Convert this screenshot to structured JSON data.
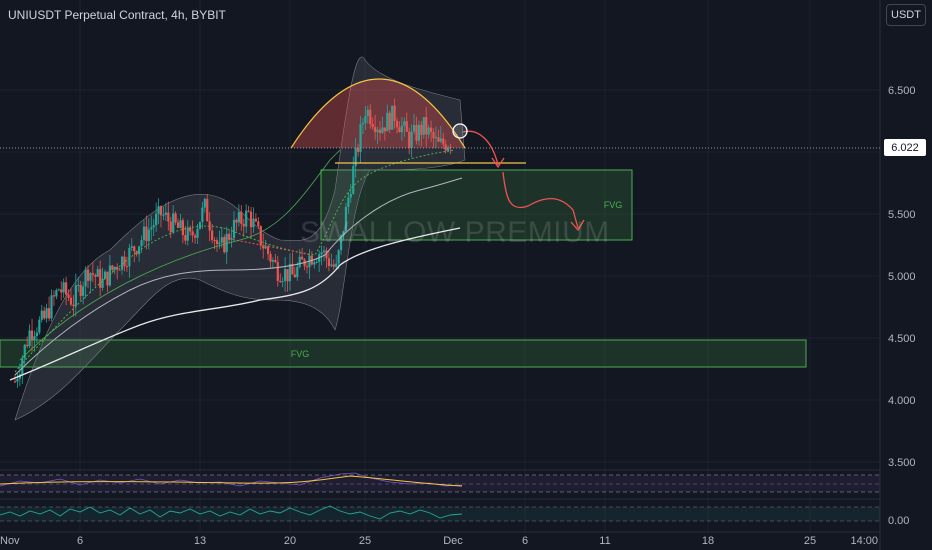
{
  "header": {
    "title": "UNIUSDT Perpetual Contract, 4h, BYBIT",
    "currency": "USDT"
  },
  "watermark": "SWALLOW PREMIUM",
  "current_price": "6.022",
  "chart_data": {
    "type": "candlestick",
    "title": "UNIUSDT Perpetual Contract, 4h, BYBIT",
    "y_ticks": [
      "6.500",
      "6.000",
      "5.500",
      "5.000",
      "4.500",
      "4.000",
      "3.500"
    ],
    "y_tick_values": [
      6.5,
      6.0,
      5.5,
      5.0,
      4.5,
      4.0,
      3.5
    ],
    "x_ticks": [
      "Nov",
      "6",
      "13",
      "20",
      "25",
      "Dec",
      "6",
      "11",
      "18",
      "25",
      "14:00"
    ],
    "x_tick_days": [
      0,
      6,
      13,
      20,
      25,
      30,
      36,
      41,
      48,
      55,
      61
    ],
    "ylim": [
      3.4,
      7.0
    ],
    "indicator_ticks": [
      "0.00"
    ],
    "price_path": [
      [
        0,
        4.15
      ],
      [
        1,
        4.55
      ],
      [
        2,
        4.65
      ],
      [
        3,
        4.9
      ],
      [
        4,
        4.8
      ],
      [
        5,
        5.05
      ],
      [
        6,
        4.95
      ],
      [
        7,
        5.1
      ],
      [
        8,
        5.2
      ],
      [
        9,
        5.35
      ],
      [
        10,
        5.5
      ],
      [
        11,
        5.4
      ],
      [
        12,
        5.3
      ],
      [
        13,
        5.55
      ],
      [
        14,
        5.2
      ],
      [
        15,
        5.4
      ],
      [
        16,
        5.5
      ],
      [
        17,
        5.25
      ],
      [
        18,
        5.05
      ],
      [
        19,
        5.0
      ],
      [
        20,
        5.15
      ],
      [
        21,
        5.2
      ],
      [
        22,
        5.05
      ],
      [
        23,
        5.75
      ],
      [
        24,
        6.35
      ],
      [
        25,
        6.2
      ],
      [
        26,
        6.3
      ],
      [
        27,
        6.1
      ],
      [
        28,
        6.2
      ],
      [
        29,
        6.05
      ],
      [
        30,
        6.1
      ]
    ],
    "fvg_zones": [
      {
        "label": "FVG",
        "from_day": 0,
        "to_day": 47,
        "low": 4.27,
        "high": 4.5
      },
      {
        "label": "FVG",
        "from_day": 23.5,
        "to_day": 42,
        "low": 5.28,
        "high": 5.85
      }
    ],
    "support_line": 5.9,
    "colors": {
      "up": "#26a69a",
      "down": "#ef5350",
      "fvg": "#4caf50",
      "arc": "#f5c542",
      "forecast": "#f05350"
    }
  }
}
